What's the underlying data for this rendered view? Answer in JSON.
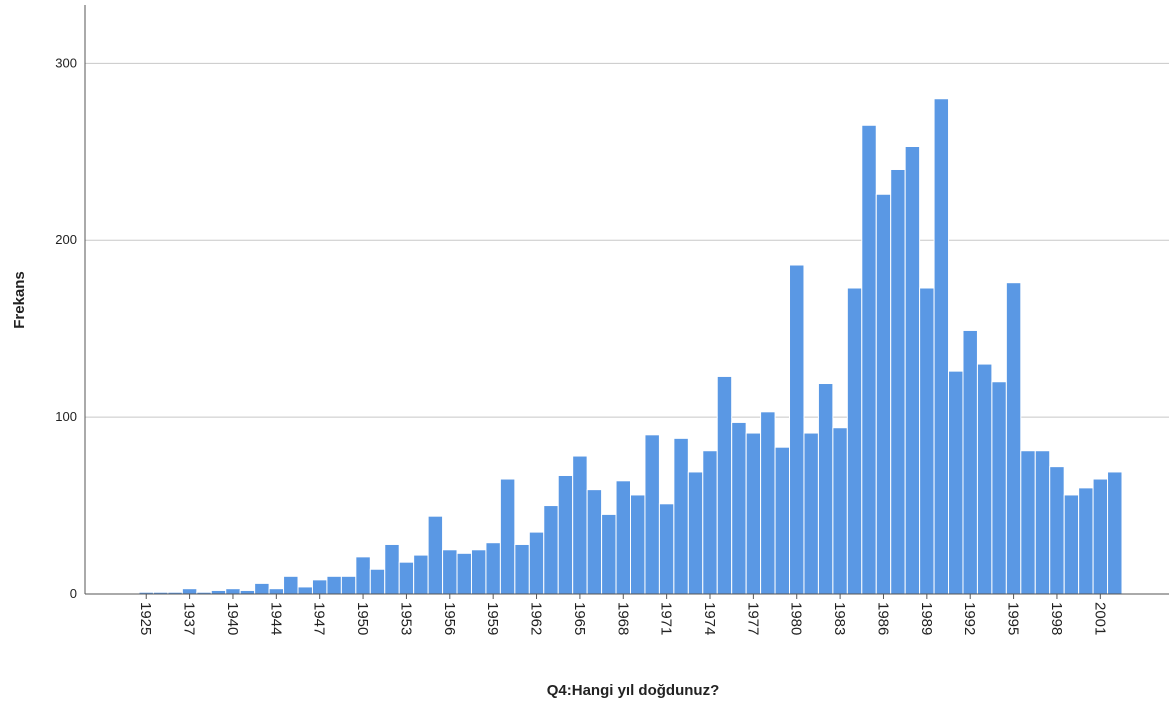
{
  "chart_data": {
    "type": "bar",
    "x_label": "Q4:Hangi yıl doğdunuz?",
    "y_label": "Frekans",
    "color": "#5a98e4",
    "categories": [
      "1925",
      null,
      null,
      "1937",
      null,
      null,
      "1940",
      null,
      null,
      "1944",
      null,
      null,
      "1947",
      null,
      null,
      "1950",
      null,
      null,
      "1953",
      null,
      null,
      "1956",
      null,
      null,
      "1959",
      null,
      null,
      "1962",
      null,
      null,
      "1965",
      null,
      null,
      "1968",
      null,
      null,
      "1971",
      null,
      null,
      "1974",
      null,
      null,
      "1977",
      null,
      null,
      "1980",
      null,
      null,
      "1983",
      null,
      null,
      "1986",
      null,
      null,
      "1989",
      null,
      null,
      "1992",
      null,
      null,
      "1995",
      null,
      null,
      "1998",
      null,
      null,
      "2001",
      null
    ],
    "values": [
      1,
      1,
      1,
      3,
      1,
      2,
      3,
      2,
      6,
      3,
      10,
      4,
      8,
      10,
      10,
      21,
      14,
      28,
      18,
      22,
      44,
      25,
      23,
      25,
      29,
      65,
      28,
      35,
      50,
      67,
      78,
      59,
      45,
      64,
      56,
      90,
      51,
      88,
      69,
      81,
      123,
      97,
      91,
      103,
      83,
      186,
      91,
      119,
      94,
      173,
      265,
      226,
      240,
      253,
      173,
      280,
      126,
      149,
      130,
      120,
      176,
      81,
      81,
      72,
      56,
      60,
      65,
      69
    ],
    "ylim": [
      0,
      333
    ],
    "yticks": [
      0,
      100,
      200,
      300
    ],
    "grid": true
  }
}
